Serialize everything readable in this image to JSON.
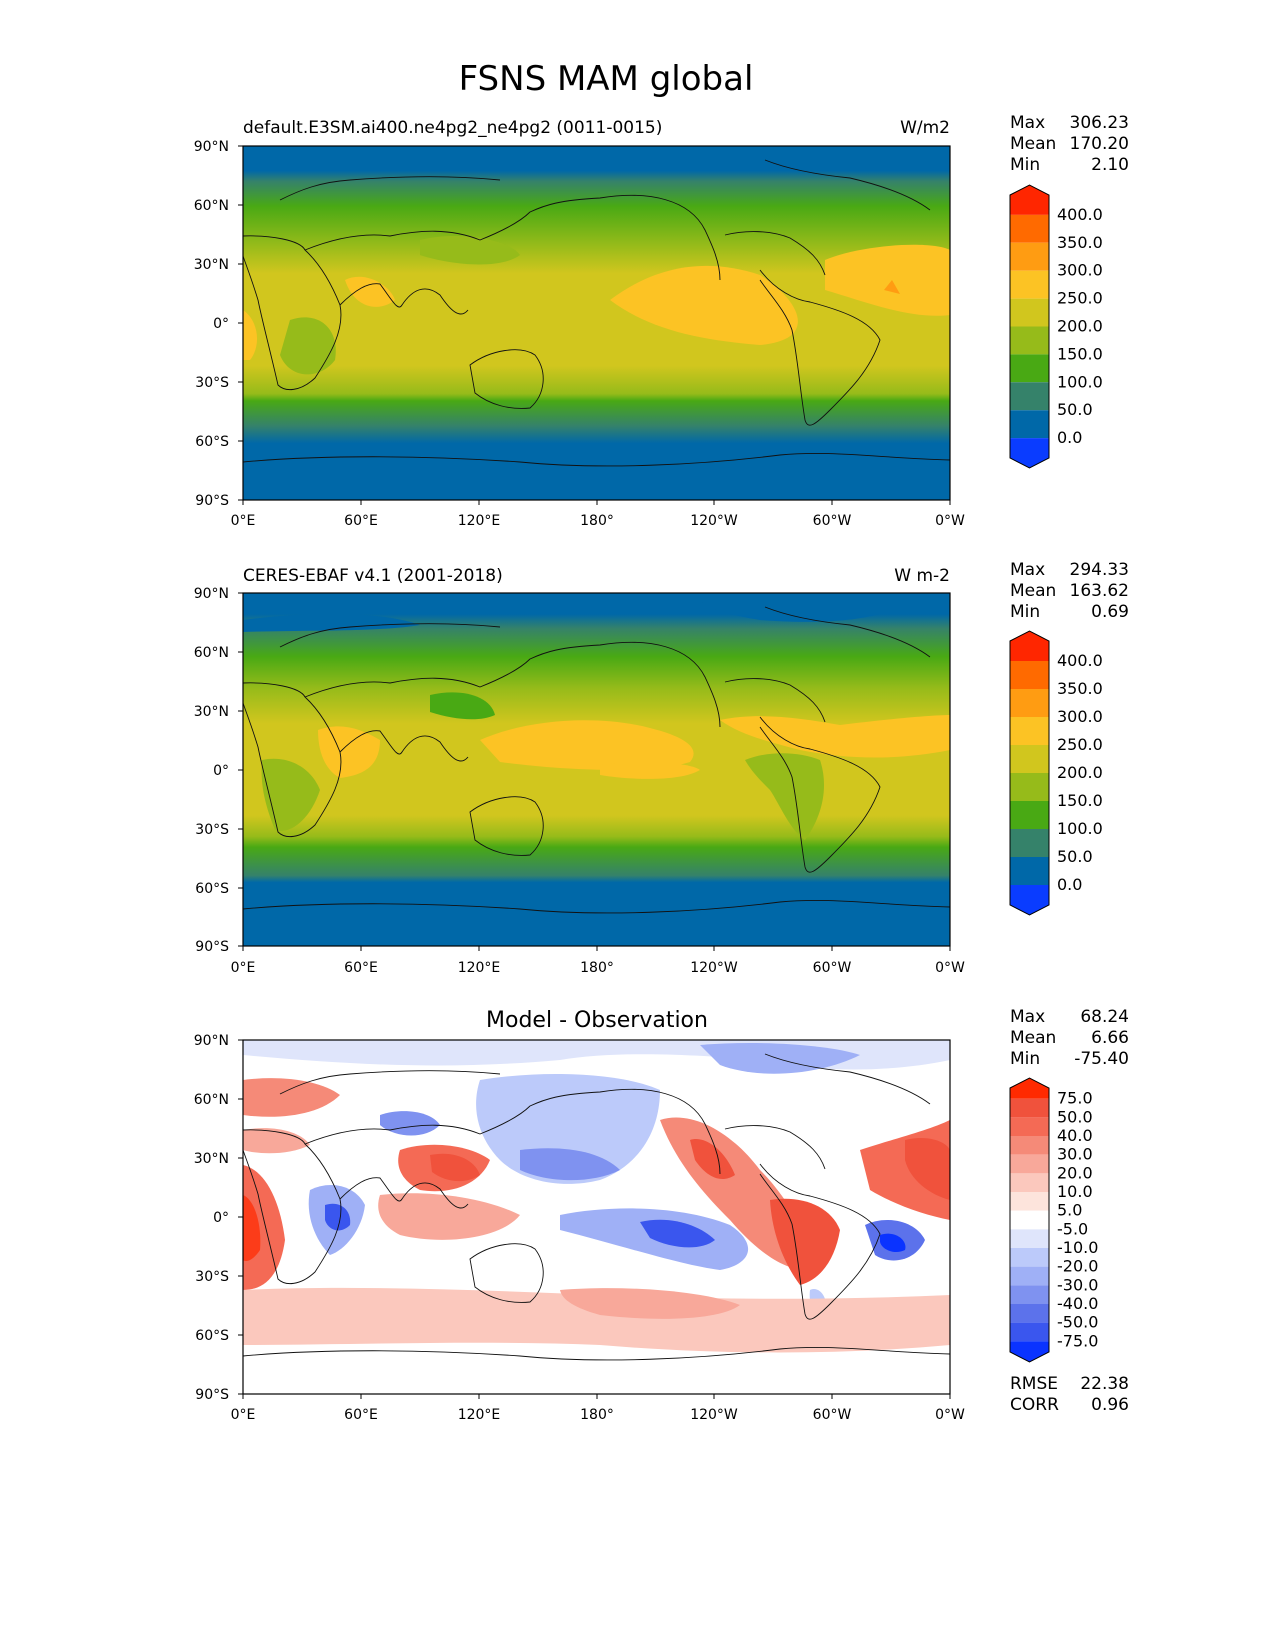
{
  "title": "FSNS MAM global",
  "lat_ticks": [
    "90°N",
    "60°N",
    "30°N",
    "0°",
    "30°S",
    "60°S",
    "90°S"
  ],
  "lon_ticks": [
    "0°E",
    "60°E",
    "120°E",
    "180°",
    "120°W",
    "60°W",
    "0°W"
  ],
  "panels": [
    {
      "left_title": "default.E3SM.ai400.ne4pg2_ne4pg2 (0011-0015)",
      "center_title": "",
      "units": "W/m2",
      "stats": [
        {
          "label": "Max",
          "value": "306.23"
        },
        {
          "label": "Mean",
          "value": "170.20"
        },
        {
          "label": "Min",
          "value": "2.10"
        }
      ],
      "colorbar": {
        "labels": [
          "400.0",
          "350.0",
          "300.0",
          "250.0",
          "200.0",
          "150.0",
          "100.0",
          "50.0",
          "0.0"
        ],
        "colors": [
          "#ff2600",
          "#ff6a00",
          "#ff9c12",
          "#fcc324",
          "#d1c61e",
          "#96bb1a",
          "#49a914",
          "#35826a",
          "#0068a8",
          "#0a3cff"
        ]
      },
      "extra_stats": []
    },
    {
      "left_title": "CERES-EBAF v4.1 (2001-2018)",
      "center_title": "",
      "units": "W m-2",
      "stats": [
        {
          "label": "Max",
          "value": "294.33"
        },
        {
          "label": "Mean",
          "value": "163.62"
        },
        {
          "label": "Min",
          "value": "0.69"
        }
      ],
      "colorbar": {
        "labels": [
          "400.0",
          "350.0",
          "300.0",
          "250.0",
          "200.0",
          "150.0",
          "100.0",
          "50.0",
          "0.0"
        ],
        "colors": [
          "#ff2600",
          "#ff6a00",
          "#ff9c12",
          "#fcc324",
          "#d1c61e",
          "#96bb1a",
          "#49a914",
          "#35826a",
          "#0068a8",
          "#0a3cff"
        ]
      },
      "extra_stats": []
    },
    {
      "left_title": "",
      "center_title": "Model - Observation",
      "units": "",
      "stats": [
        {
          "label": "Max",
          "value": "68.24"
        },
        {
          "label": "Mean",
          "value": "6.66"
        },
        {
          "label": "Min",
          "value": "-75.40"
        }
      ],
      "colorbar": {
        "labels": [
          "75.0",
          "50.0",
          "40.0",
          "30.0",
          "20.0",
          "10.0",
          "5.0",
          "-5.0",
          "-10.0",
          "-20.0",
          "-30.0",
          "-40.0",
          "-50.0",
          "-75.0"
        ],
        "colors": [
          "#ff2a00",
          "#f0523c",
          "#f46a55",
          "#f58a78",
          "#f8a89a",
          "#fbc8bd",
          "#fde4dc",
          "#ffffff",
          "#dfe5fb",
          "#bccafa",
          "#9fb0f6",
          "#7f92f0",
          "#5c72eb",
          "#3a56ee",
          "#0a33ff"
        ]
      },
      "extra_stats": [
        {
          "label": "RMSE",
          "value": "22.38"
        },
        {
          "label": "CORR",
          "value": "0.96"
        }
      ]
    }
  ]
}
